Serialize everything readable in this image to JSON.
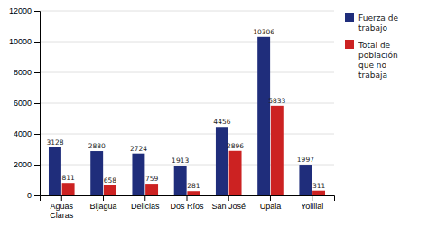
{
  "chart_data": {
    "type": "bar",
    "categories": [
      "Aguas\nClaras",
      "Bijagua",
      "Delicias",
      "Dos Ríos",
      "San José",
      "Upala",
      "Yolillal"
    ],
    "series": [
      {
        "name": "Fuerza de\ntrabajo",
        "color": "#1F2D7B",
        "values": [
          3128,
          2880,
          2724,
          1913,
          4456,
          10306,
          1997
        ]
      },
      {
        "name": "Total de\npoblación\nque no\ntrabaja",
        "color": "#CC2222",
        "values": [
          811,
          658,
          759,
          281,
          2896,
          5833,
          311
        ]
      }
    ],
    "ylim": [
      0,
      12000
    ],
    "yticks": [
      0,
      2000,
      4000,
      6000,
      8000,
      10000,
      12000
    ],
    "grid": true,
    "legend": "right",
    "data_labels": true
  }
}
